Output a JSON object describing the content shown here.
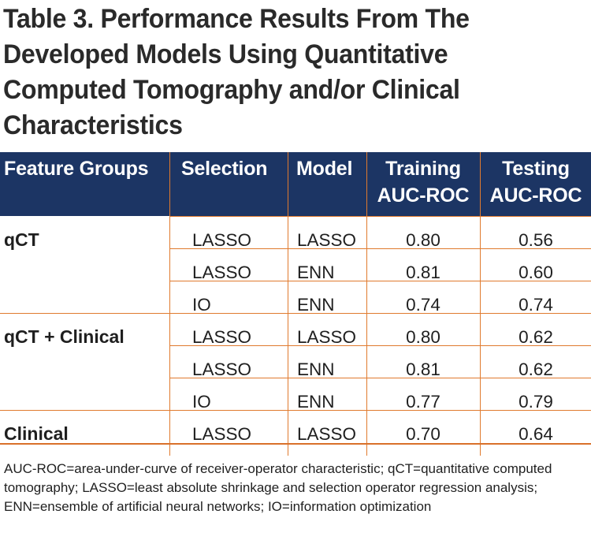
{
  "title": "Table 3. Performance Results From The Developed Models Using Quantitative Computed Tomography and/or Clinical Characteristics",
  "columns": [
    {
      "line1": "Feature Groups",
      "line2": ""
    },
    {
      "line1": "Selection",
      "line2": ""
    },
    {
      "line1": "Model",
      "line2": ""
    },
    {
      "line1": "Training",
      "line2": "AUC-ROC"
    },
    {
      "line1": "Testing",
      "line2": "AUC-ROC"
    }
  ],
  "rows": [
    {
      "group": "qCT",
      "selection": "LASSO",
      "model": "LASSO",
      "training": "0.80",
      "testing": "0.56"
    },
    {
      "group": "",
      "selection": "LASSO",
      "model": "ENN",
      "training": "0.81",
      "testing": "0.60"
    },
    {
      "group": "",
      "selection": "IO",
      "model": "ENN",
      "training": "0.74",
      "testing": "0.74"
    },
    {
      "group": "qCT + Clinical",
      "selection": "LASSO",
      "model": "LASSO",
      "training": "0.80",
      "testing": "0.62"
    },
    {
      "group": "",
      "selection": "LASSO",
      "model": "ENN",
      "training": "0.81",
      "testing": "0.62"
    },
    {
      "group": "",
      "selection": "IO",
      "model": "ENN",
      "training": "0.77",
      "testing": "0.79"
    },
    {
      "group": "Clinical",
      "selection": "LASSO",
      "model": "LASSO",
      "training": "0.70",
      "testing": "0.64"
    }
  ],
  "footnote": "AUC-ROC=area-under-curve of receiver-operator characteristic; qCT=quantitative computed tomography; LASSO=least absolute shrinkage and selection operator regression analysis; ENN=ensemble of artificial neural networks; IO=information optimization",
  "colors": {
    "header_bg": "#1c3564",
    "rule": "#e07a2e",
    "header_text": "#ffffff",
    "body_text": "#1f1f1f"
  }
}
